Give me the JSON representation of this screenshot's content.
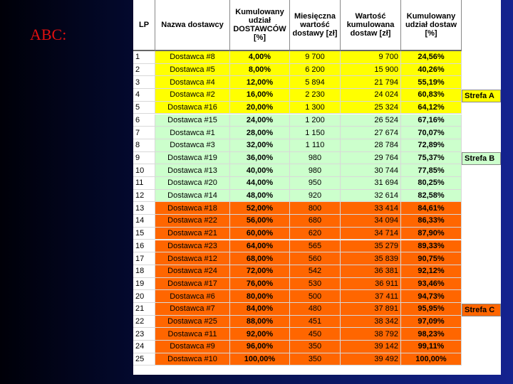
{
  "title": "ABC:",
  "table": {
    "headers": [
      "LP",
      "Nazwa dostawcy",
      "Kumulowany\nudział\nDOSTAWCÓW\n[%]",
      "Miesięczna\nwartość\ndostawy [zł]",
      "Wartość\nkumulowana\ndostaw [zł]",
      "Kumulowany\nudział dostaw\n[%]"
    ],
    "rows": [
      [
        "1",
        "Dostawca #8",
        "4,00%",
        "9 700",
        "9 700",
        "24,56%"
      ],
      [
        "2",
        "Dostawca #5",
        "8,00%",
        "6 200",
        "15 900",
        "40,26%"
      ],
      [
        "3",
        "Dostawca #4",
        "12,00%",
        "5 894",
        "21 794",
        "55,19%"
      ],
      [
        "4",
        "Dostawca #2",
        "16,00%",
        "2 230",
        "24 024",
        "60,83%"
      ],
      [
        "5",
        "Dostawca #16",
        "20,00%",
        "1 300",
        "25 324",
        "64,12%"
      ],
      [
        "6",
        "Dostawca #15",
        "24,00%",
        "1 200",
        "26 524",
        "67,16%"
      ],
      [
        "7",
        "Dostawca #1",
        "28,00%",
        "1 150",
        "27 674",
        "70,07%"
      ],
      [
        "8",
        "Dostawca #3",
        "32,00%",
        "1 110",
        "28 784",
        "72,89%"
      ],
      [
        "9",
        "Dostawca #19",
        "36,00%",
        "980",
        "29 764",
        "75,37%"
      ],
      [
        "10",
        "Dostawca #13",
        "40,00%",
        "980",
        "30 744",
        "77,85%"
      ],
      [
        "11",
        "Dostawca #20",
        "44,00%",
        "950",
        "31 694",
        "80,25%"
      ],
      [
        "12",
        "Dostawca #14",
        "48,00%",
        "920",
        "32 614",
        "82,58%"
      ],
      [
        "13",
        "Dostawca #18",
        "52,00%",
        "800",
        "33 414",
        "84,61%"
      ],
      [
        "14",
        "Dostawca #22",
        "56,00%",
        "680",
        "34 094",
        "86,33%"
      ],
      [
        "15",
        "Dostawca #21",
        "60,00%",
        "620",
        "34 714",
        "87,90%"
      ],
      [
        "16",
        "Dostawca #23",
        "64,00%",
        "565",
        "35 279",
        "89,33%"
      ],
      [
        "17",
        "Dostawca #12",
        "68,00%",
        "560",
        "35 839",
        "90,75%"
      ],
      [
        "18",
        "Dostawca #24",
        "72,00%",
        "542",
        "36 381",
        "92,12%"
      ],
      [
        "19",
        "Dostawca #17",
        "76,00%",
        "530",
        "36 911",
        "93,46%"
      ],
      [
        "20",
        "Dostawca #6",
        "80,00%",
        "500",
        "37 411",
        "94,73%"
      ],
      [
        "21",
        "Dostawca #7",
        "84,00%",
        "480",
        "37 891",
        "95,95%"
      ],
      [
        "22",
        "Dostawca #25",
        "88,00%",
        "451",
        "38 342",
        "97,09%"
      ],
      [
        "23",
        "Dostawca #11",
        "92,00%",
        "450",
        "38 792",
        "98,23%"
      ],
      [
        "24",
        "Dostawca #9",
        "96,00%",
        "350",
        "39 142",
        "99,11%"
      ],
      [
        "25",
        "Dostawca #10",
        "100,00%",
        "350",
        "39 492",
        "100,00%"
      ]
    ]
  },
  "zones": [
    "Strefa A",
    "Strefa B",
    "Strefa C"
  ]
}
